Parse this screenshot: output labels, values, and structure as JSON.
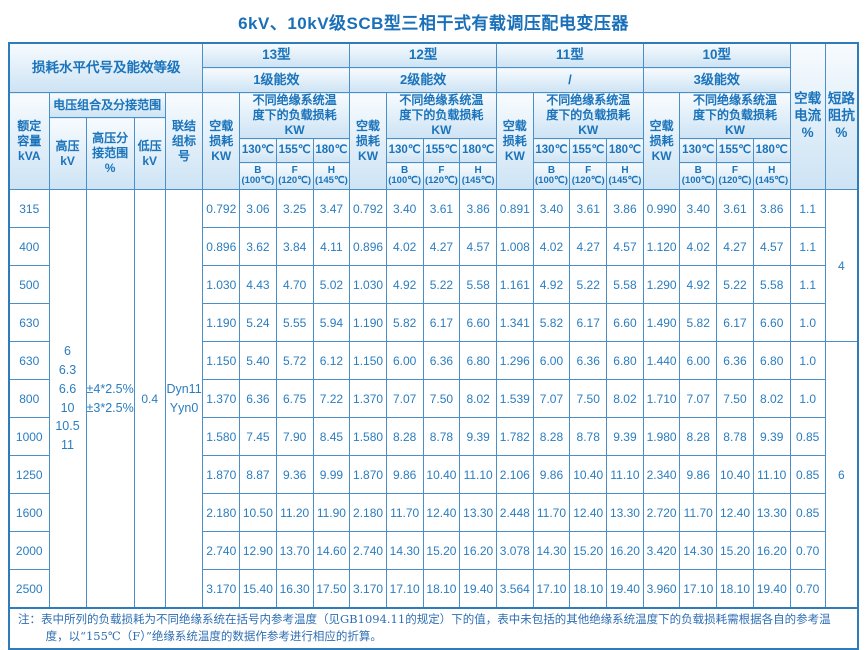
{
  "title": "6kV、10kV级SCB型三相干式有载调压配电变压器",
  "header": {
    "loss_level_label": "损耗水平代号及能效等级",
    "voltage_combo_label": "电压组合及分接范围",
    "capacity_label": "额定\n容量\nkVA",
    "hv_label": "高压\nkV",
    "hv_tap_label": "高压分\n接范围\n%",
    "lv_label": "低压\nkV",
    "vector_label": "联结\n组标\n号",
    "no_load_loss_label": "空载\n损耗\nKW",
    "load_loss_label": "不同绝缘系统温\n度下的负载损耗\nKW",
    "no_load_current_label": "空载\n电流\n%",
    "impedance_label": "短路\n阻抗\n%",
    "temps": [
      "130℃",
      "155℃",
      "180℃"
    ],
    "temp_classes": [
      {
        "letter": "B",
        "ref": "(100℃)"
      },
      {
        "letter": "F",
        "ref": "(120℃)"
      },
      {
        "letter": "H",
        "ref": "(145℃)"
      }
    ],
    "types": [
      {
        "name": "13型",
        "efficiency": "1级能效"
      },
      {
        "name": "12型",
        "efficiency": "2级能效"
      },
      {
        "name": "11型",
        "efficiency": "/"
      },
      {
        "name": "10型",
        "efficiency": "3级能效"
      }
    ]
  },
  "voltage": {
    "hv_values": "6\n6.3\n6.6\n10\n10.5\n11",
    "hv_tap_range": "±4*2.5%\n±3*2.5%",
    "lv_value": "0.4",
    "vector_group": "Dyn11\nYyn0"
  },
  "rows": [
    {
      "capacity": "315",
      "t13": [
        "0.792",
        "3.06",
        "3.25",
        "3.47"
      ],
      "t12": [
        "0.792",
        "3.40",
        "3.61",
        "3.86"
      ],
      "t11": [
        "0.891",
        "3.40",
        "3.61",
        "3.86"
      ],
      "t10": [
        "0.990",
        "3.40",
        "3.61",
        "3.86"
      ],
      "no_load_current": "1.1"
    },
    {
      "capacity": "400",
      "t13": [
        "0.896",
        "3.62",
        "3.84",
        "4.11"
      ],
      "t12": [
        "0.896",
        "4.02",
        "4.27",
        "4.57"
      ],
      "t11": [
        "1.008",
        "4.02",
        "4.27",
        "4.57"
      ],
      "t10": [
        "1.120",
        "4.02",
        "4.27",
        "4.57"
      ],
      "no_load_current": "1.1"
    },
    {
      "capacity": "500",
      "t13": [
        "1.030",
        "4.43",
        "4.70",
        "5.02"
      ],
      "t12": [
        "1.030",
        "4.92",
        "5.22",
        "5.58"
      ],
      "t11": [
        "1.161",
        "4.92",
        "5.22",
        "5.58"
      ],
      "t10": [
        "1.290",
        "4.92",
        "5.22",
        "5.58"
      ],
      "no_load_current": "1.1"
    },
    {
      "capacity": "630",
      "t13": [
        "1.190",
        "5.24",
        "5.55",
        "5.94"
      ],
      "t12": [
        "1.190",
        "5.82",
        "6.17",
        "6.60"
      ],
      "t11": [
        "1.341",
        "5.82",
        "6.17",
        "6.60"
      ],
      "t10": [
        "1.490",
        "5.82",
        "6.17",
        "6.60"
      ],
      "no_load_current": "1.0"
    },
    {
      "capacity": "630",
      "t13": [
        "1.150",
        "5.40",
        "5.72",
        "6.12"
      ],
      "t12": [
        "1.150",
        "6.00",
        "6.36",
        "6.80"
      ],
      "t11": [
        "1.296",
        "6.00",
        "6.36",
        "6.80"
      ],
      "t10": [
        "1.440",
        "6.00",
        "6.36",
        "6.80"
      ],
      "no_load_current": "1.0"
    },
    {
      "capacity": "800",
      "t13": [
        "1.370",
        "6.36",
        "6.75",
        "7.22"
      ],
      "t12": [
        "1.370",
        "7.07",
        "7.50",
        "8.02"
      ],
      "t11": [
        "1.539",
        "7.07",
        "7.50",
        "8.02"
      ],
      "t10": [
        "1.710",
        "7.07",
        "7.50",
        "8.02"
      ],
      "no_load_current": "1.0"
    },
    {
      "capacity": "1000",
      "t13": [
        "1.580",
        "7.45",
        "7.90",
        "8.45"
      ],
      "t12": [
        "1.580",
        "8.28",
        "8.78",
        "9.39"
      ],
      "t11": [
        "1.782",
        "8.28",
        "8.78",
        "9.39"
      ],
      "t10": [
        "1.980",
        "8.28",
        "8.78",
        "9.39"
      ],
      "no_load_current": "0.85"
    },
    {
      "capacity": "1250",
      "t13": [
        "1.870",
        "8.87",
        "9.36",
        "9.99"
      ],
      "t12": [
        "1.870",
        "9.86",
        "10.40",
        "11.10"
      ],
      "t11": [
        "2.106",
        "9.86",
        "10.40",
        "11.10"
      ],
      "t10": [
        "2.340",
        "9.86",
        "10.40",
        "11.10"
      ],
      "no_load_current": "0.85"
    },
    {
      "capacity": "1600",
      "t13": [
        "2.180",
        "10.50",
        "11.20",
        "11.90"
      ],
      "t12": [
        "2.180",
        "11.70",
        "12.40",
        "13.30"
      ],
      "t11": [
        "2.448",
        "11.70",
        "12.40",
        "13.30"
      ],
      "t10": [
        "2.720",
        "11.70",
        "12.40",
        "13.30"
      ],
      "no_load_current": "0.85"
    },
    {
      "capacity": "2000",
      "t13": [
        "2.740",
        "12.90",
        "13.70",
        "14.60"
      ],
      "t12": [
        "2.740",
        "14.30",
        "15.20",
        "16.20"
      ],
      "t11": [
        "3.078",
        "14.30",
        "15.20",
        "16.20"
      ],
      "t10": [
        "3.420",
        "14.30",
        "15.20",
        "16.20"
      ],
      "no_load_current": "0.70"
    },
    {
      "capacity": "2500",
      "t13": [
        "3.170",
        "15.40",
        "16.30",
        "17.50"
      ],
      "t12": [
        "3.170",
        "17.10",
        "18.10",
        "19.40"
      ],
      "t11": [
        "3.564",
        "17.10",
        "18.10",
        "19.40"
      ],
      "t10": [
        "3.960",
        "17.10",
        "18.10",
        "19.40"
      ],
      "no_load_current": "0.70"
    }
  ],
  "impedance_groups": [
    {
      "value": "4",
      "row_span": 4
    },
    {
      "value": "6",
      "row_span": 7
    }
  ],
  "note": "注：表中所列的负载损耗为不同绝缘系统在括号内参考温度（见GB1094.11的规定）下的值，表中未包括的其他绝缘系统温度下的负载损耗需根据各自的参考温度，以“155℃（F）”绝缘系统温度的数据作参考进行相应的折算。",
  "colors": {
    "accent_blue": "#1b74bb",
    "border_blue": "#4a8fc7",
    "outer_border": "#2f7cba",
    "header_gradient_top": "#f7fbfe",
    "header_gradient_bottom": "#cde3f4"
  }
}
